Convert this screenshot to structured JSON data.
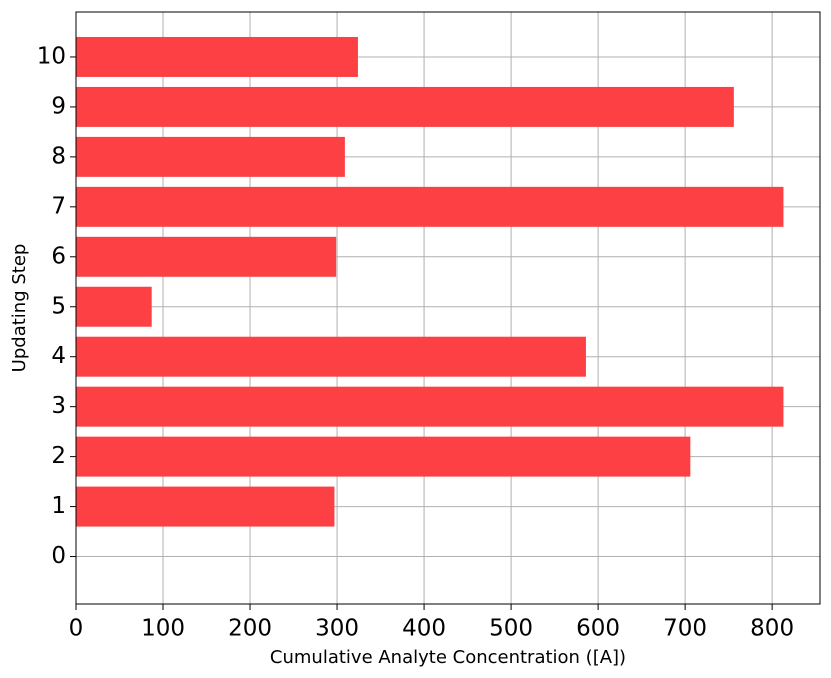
{
  "chart_data": {
    "type": "bar",
    "orientation": "horizontal",
    "x_label": "Cumulative Analyte Concentration ([A])",
    "y_label": "Updating Step",
    "y": [
      1,
      2,
      3,
      4,
      5,
      6,
      7,
      8,
      9,
      10
    ],
    "values": [
      297,
      706,
      813,
      586,
      87,
      299,
      813,
      309,
      756,
      324
    ],
    "color": "#fc4043",
    "bar_height": 0.8,
    "xlim": [
      0,
      855
    ],
    "xticks": [
      0,
      100,
      200,
      300,
      400,
      500,
      600,
      700,
      800
    ],
    "ylim": [
      -0.95,
      10.9
    ],
    "yticks": [
      0,
      1,
      2,
      3,
      4,
      5,
      6,
      7,
      8,
      9,
      10
    ],
    "grid": true
  }
}
